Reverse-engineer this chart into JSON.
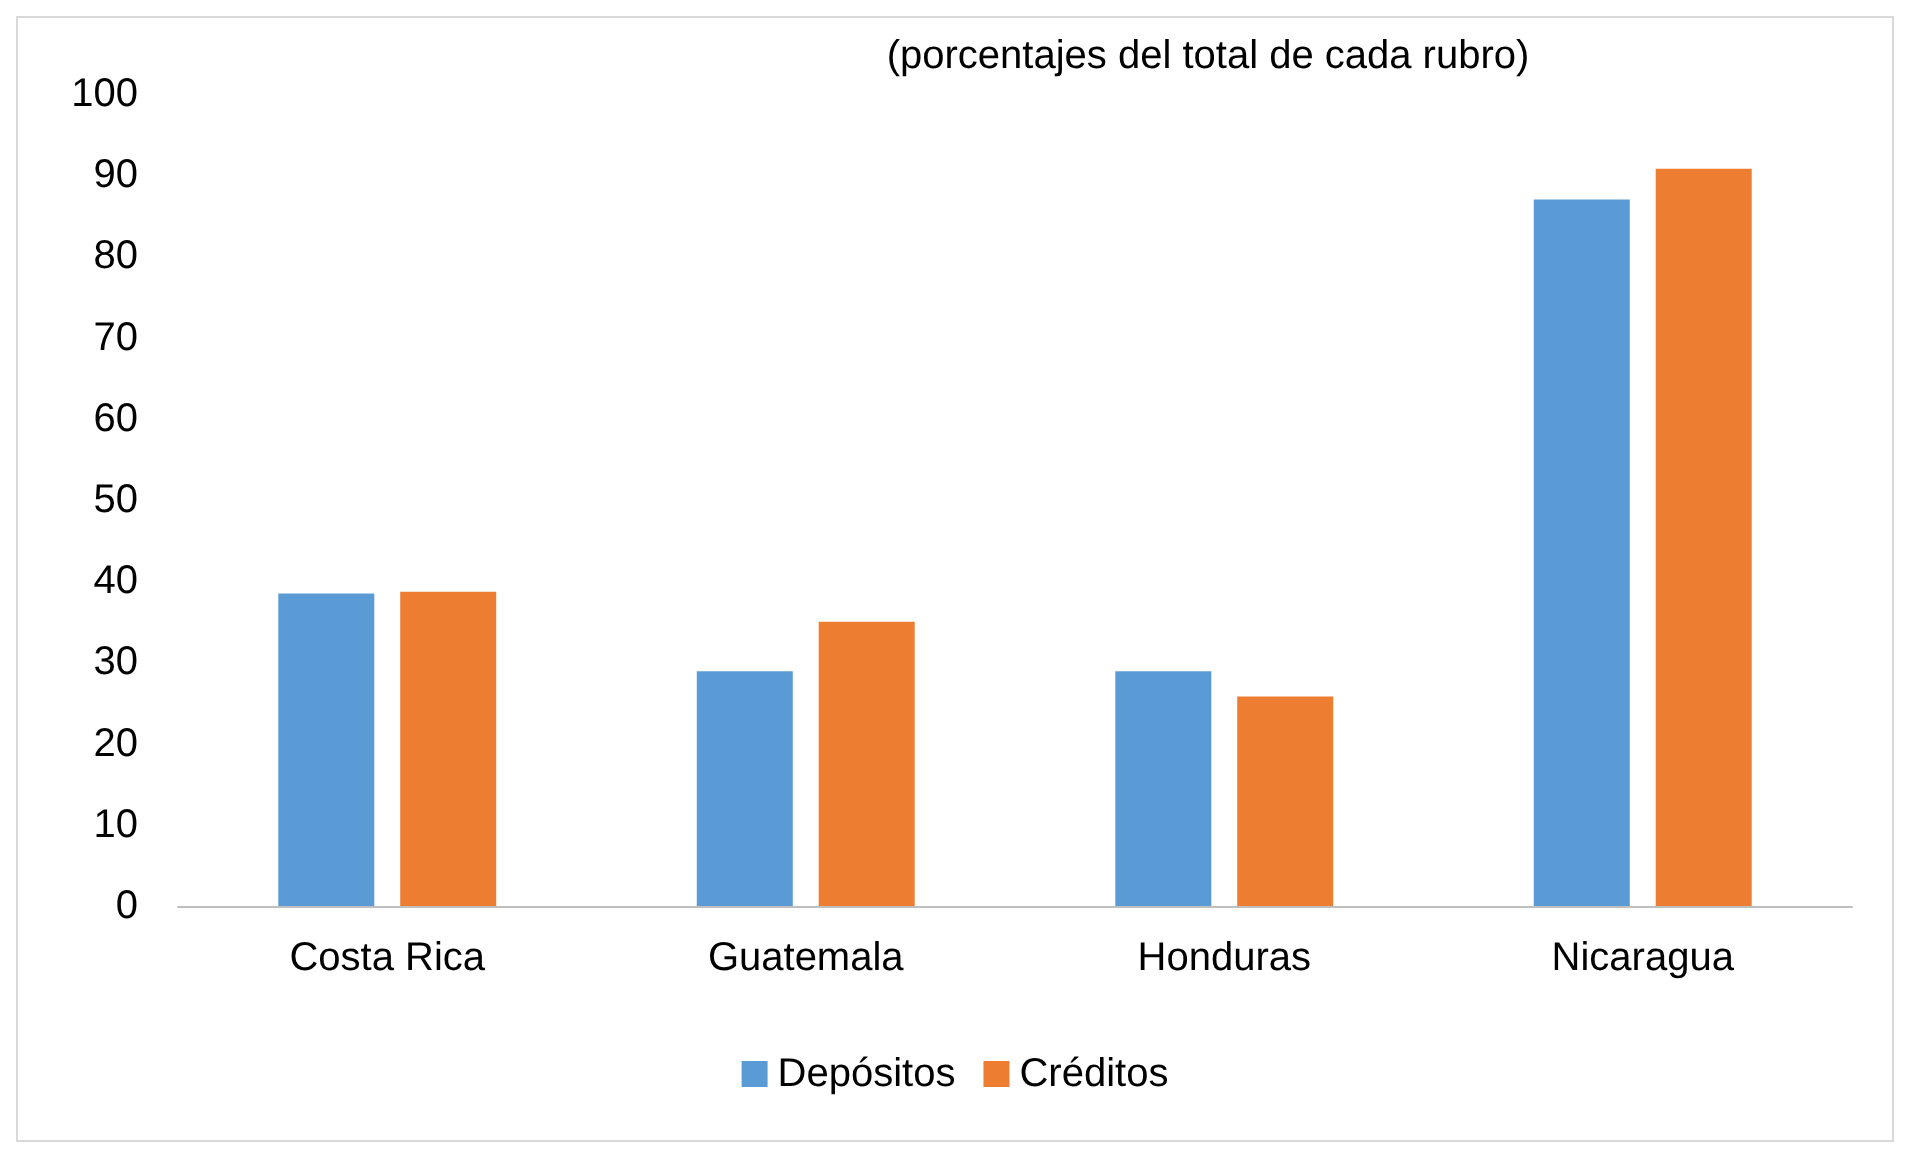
{
  "chart_data": {
    "type": "bar",
    "title": "(porcentajes del total de cada rubro)",
    "categories": [
      "Costa Rica",
      "Guatemala",
      "Honduras",
      "Nicaragua"
    ],
    "series": [
      {
        "name": "Depósitos",
        "color": "#5b9bd5",
        "values": [
          38.5,
          28.9,
          28.9,
          87
        ]
      },
      {
        "name": "Créditos",
        "color": "#ed7d31",
        "values": [
          38.7,
          35,
          25.8,
          90.8
        ]
      }
    ],
    "ylim": [
      0,
      100
    ],
    "yticks": [
      0,
      10,
      20,
      30,
      40,
      50,
      60,
      70,
      80,
      90,
      100
    ],
    "grid": false,
    "legend": "bottom"
  }
}
